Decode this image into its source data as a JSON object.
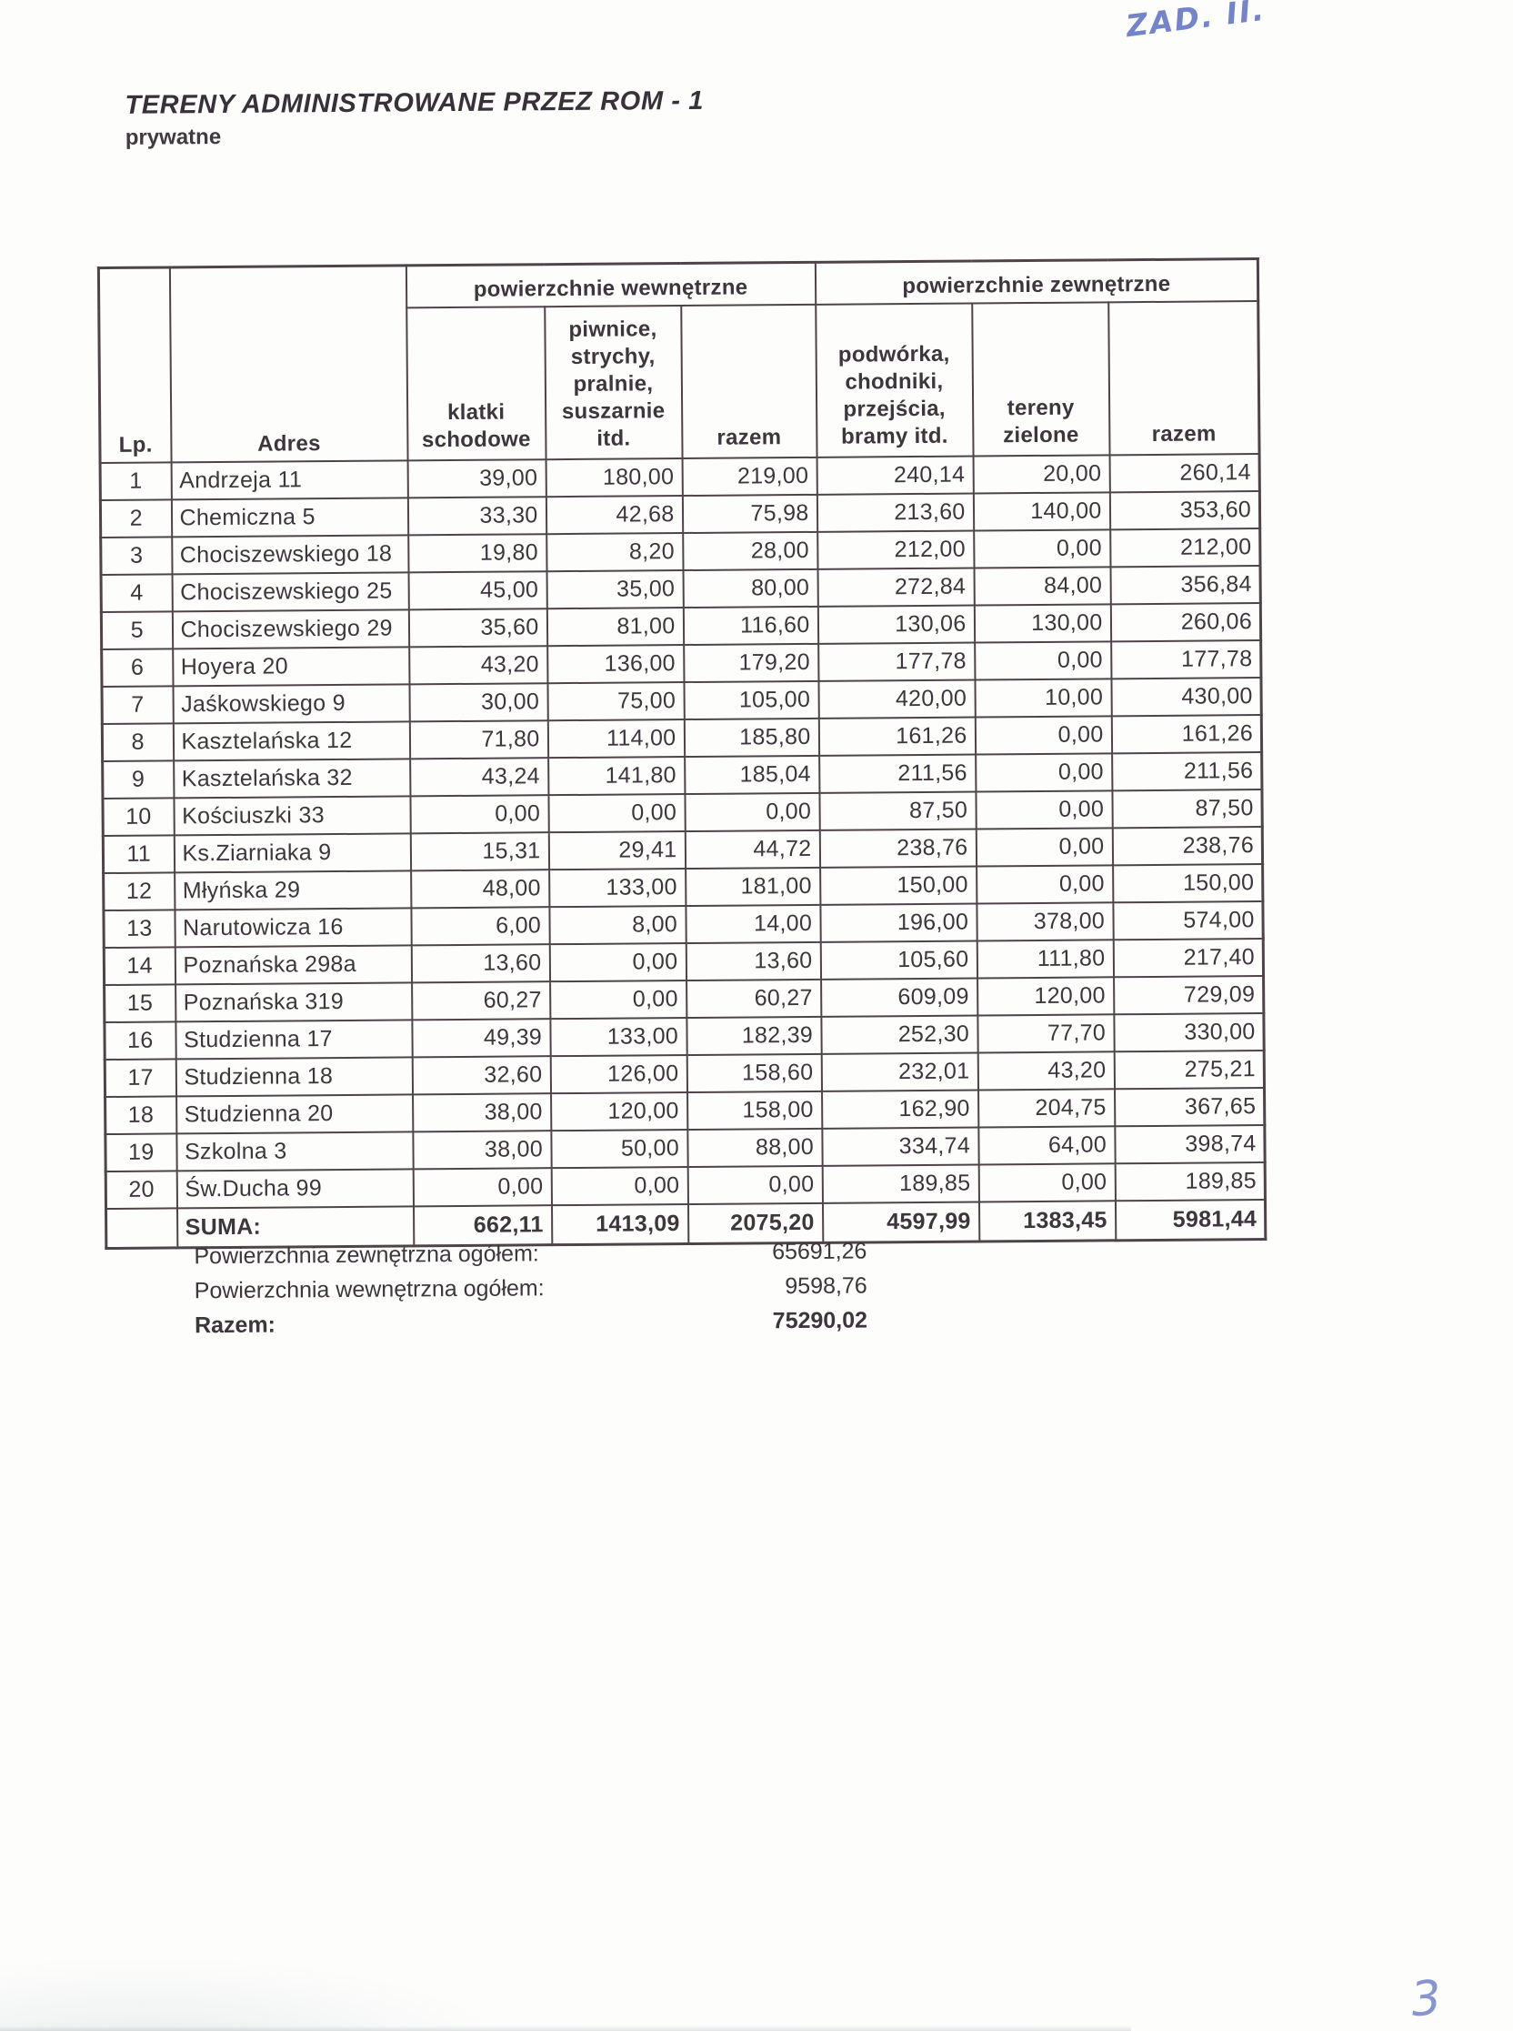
{
  "annotations": {
    "top_right_handwriting": "ZAD. II.",
    "page_number": "3",
    "handwriting_ink": "#5d6fc2"
  },
  "title": "TERENY ADMINISTROWANE PRZEZ ROM - 1",
  "subtitle": "prywatne",
  "table": {
    "group_headers": {
      "internal": "powierzchnie wewnętrzne",
      "external": "powierzchnie zewnętrzne"
    },
    "col_headers": {
      "lp": "Lp.",
      "adres": "Adres",
      "klatki": "klatki\nschodowe",
      "piwnice": "piwnice,\nstrychy,\npralnie,\nsuszarnie\nitd.",
      "razem_wewn": "razem",
      "podworka": "podwórka,\nchodniki,\nprzejścia,\nbramy itd.",
      "tereny": "tereny\nzielone",
      "razem_zewn": "razem"
    },
    "rows": [
      {
        "lp": "1",
        "adres": "Andrzeja 11",
        "values": [
          "39,00",
          "180,00",
          "219,00",
          "240,14",
          "20,00",
          "260,14"
        ]
      },
      {
        "lp": "2",
        "adres": "Chemiczna 5",
        "values": [
          "33,30",
          "42,68",
          "75,98",
          "213,60",
          "140,00",
          "353,60"
        ]
      },
      {
        "lp": "3",
        "adres": "Chociszewskiego 18",
        "values": [
          "19,80",
          "8,20",
          "28,00",
          "212,00",
          "0,00",
          "212,00"
        ]
      },
      {
        "lp": "4",
        "adres": "Chociszewskiego 25",
        "values": [
          "45,00",
          "35,00",
          "80,00",
          "272,84",
          "84,00",
          "356,84"
        ]
      },
      {
        "lp": "5",
        "adres": "Chociszewskiego 29",
        "values": [
          "35,60",
          "81,00",
          "116,60",
          "130,06",
          "130,00",
          "260,06"
        ]
      },
      {
        "lp": "6",
        "adres": "Hoyera 20",
        "values": [
          "43,20",
          "136,00",
          "179,20",
          "177,78",
          "0,00",
          "177,78"
        ]
      },
      {
        "lp": "7",
        "adres": "Jaśkowskiego 9",
        "values": [
          "30,00",
          "75,00",
          "105,00",
          "420,00",
          "10,00",
          "430,00"
        ]
      },
      {
        "lp": "8",
        "adres": "Kasztelańska 12",
        "values": [
          "71,80",
          "114,00",
          "185,80",
          "161,26",
          "0,00",
          "161,26"
        ]
      },
      {
        "lp": "9",
        "adres": "Kasztelańska 32",
        "values": [
          "43,24",
          "141,80",
          "185,04",
          "211,56",
          "0,00",
          "211,56"
        ]
      },
      {
        "lp": "10",
        "adres": "Kościuszki 33",
        "values": [
          "0,00",
          "0,00",
          "0,00",
          "87,50",
          "0,00",
          "87,50"
        ]
      },
      {
        "lp": "11",
        "adres": "Ks.Ziarniaka 9",
        "values": [
          "15,31",
          "29,41",
          "44,72",
          "238,76",
          "0,00",
          "238,76"
        ]
      },
      {
        "lp": "12",
        "adres": "Młyńska 29",
        "values": [
          "48,00",
          "133,00",
          "181,00",
          "150,00",
          "0,00",
          "150,00"
        ]
      },
      {
        "lp": "13",
        "adres": "Narutowicza 16",
        "values": [
          "6,00",
          "8,00",
          "14,00",
          "196,00",
          "378,00",
          "574,00"
        ]
      },
      {
        "lp": "14",
        "adres": "Poznańska 298a",
        "values": [
          "13,60",
          "0,00",
          "13,60",
          "105,60",
          "111,80",
          "217,40"
        ]
      },
      {
        "lp": "15",
        "adres": "Poznańska 319",
        "values": [
          "60,27",
          "0,00",
          "60,27",
          "609,09",
          "120,00",
          "729,09"
        ]
      },
      {
        "lp": "16",
        "adres": "Studzienna 17",
        "values": [
          "49,39",
          "133,00",
          "182,39",
          "252,30",
          "77,70",
          "330,00"
        ]
      },
      {
        "lp": "17",
        "adres": "Studzienna 18",
        "values": [
          "32,60",
          "126,00",
          "158,60",
          "232,01",
          "43,20",
          "275,21"
        ]
      },
      {
        "lp": "18",
        "adres": "Studzienna 20",
        "values": [
          "38,00",
          "120,00",
          "158,00",
          "162,90",
          "204,75",
          "367,65"
        ]
      },
      {
        "lp": "19",
        "adres": "Szkolna 3",
        "values": [
          "38,00",
          "50,00",
          "88,00",
          "334,74",
          "64,00",
          "398,74"
        ]
      },
      {
        "lp": "20",
        "adres": "Św.Ducha 99",
        "values": [
          "0,00",
          "0,00",
          "0,00",
          "189,85",
          "0,00",
          "189,85"
        ]
      }
    ],
    "suma": {
      "label": "SUMA:",
      "values": [
        "662,11",
        "1413,09",
        "2075,20",
        "4597,99",
        "1383,45",
        "5981,44"
      ]
    }
  },
  "summary": {
    "rows": [
      {
        "label": "Powierzchnia zewnętrzna ogółem:",
        "value": "65691,26"
      },
      {
        "label": "Powierzchnia wewnętrzna ogółem:",
        "value": "9598,76"
      },
      {
        "label": "Razem:",
        "value": "75290,02"
      }
    ]
  }
}
